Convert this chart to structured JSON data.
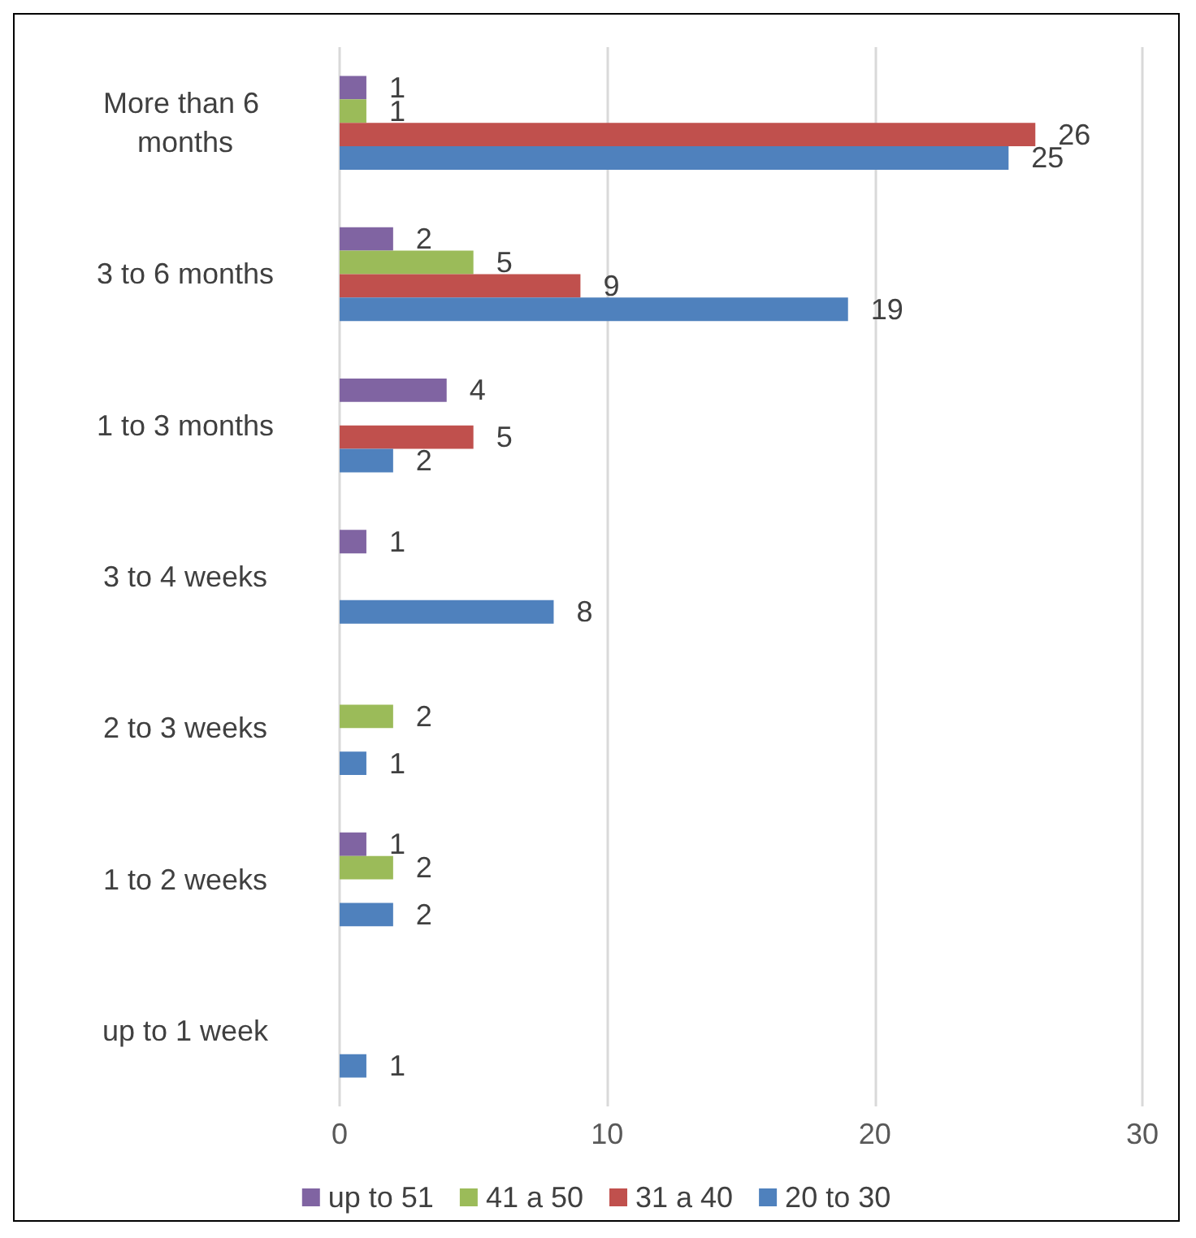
{
  "chart_data": {
    "type": "bar",
    "orientation": "horizontal",
    "categories": [
      "More than 6 months",
      "3 to 6 months",
      "1 to 3 months",
      "3 to 4 weeks",
      "2 to 3 weeks",
      "1 to 2 weeks",
      "up to 1 week"
    ],
    "series": [
      {
        "name": "up to 51",
        "color": "#8064a2",
        "values": [
          1,
          2,
          4,
          1,
          null,
          1,
          null
        ]
      },
      {
        "name": "41 a 50",
        "color": "#9bbb59",
        "values": [
          1,
          5,
          null,
          null,
          2,
          2,
          null
        ]
      },
      {
        "name": "31 a 40",
        "color": "#c0504d",
        "values": [
          26,
          9,
          5,
          null,
          null,
          null,
          null
        ]
      },
      {
        "name": "20 to 30",
        "color": "#4f81bd",
        "values": [
          25,
          19,
          2,
          8,
          1,
          2,
          1
        ]
      }
    ],
    "xlim": [
      0,
      30
    ],
    "xticks": [
      0,
      10,
      20,
      30
    ],
    "grid": "x",
    "legend": "bottom",
    "data_labels": true
  }
}
